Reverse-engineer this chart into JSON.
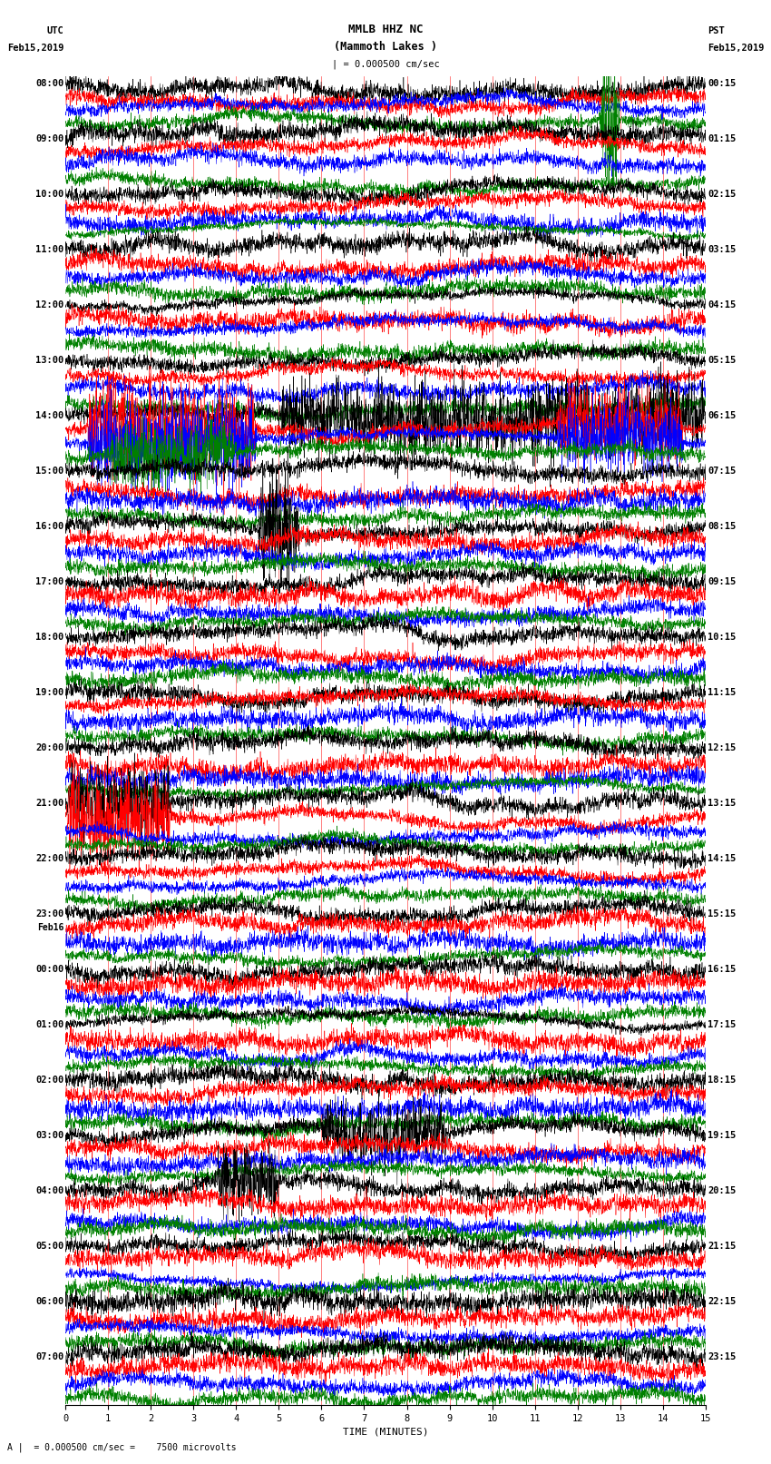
{
  "title_line1": "MMLB HHZ NC",
  "title_line2": "(Mammoth Lakes )",
  "title_line3": "| = 0.000500 cm/sec",
  "left_header1": "UTC",
  "left_header2": "Feb15,2019",
  "right_header1": "PST",
  "right_header2": "Feb15,2019",
  "footer": "A |  = 0.000500 cm/sec =    7500 microvolts",
  "xlabel": "TIME (MINUTES)",
  "colors": [
    "black",
    "red",
    "blue",
    "green"
  ],
  "num_rows": 96,
  "minutes": 15,
  "samples_per_minute": 200,
  "left_times": [
    "08:00",
    "",
    "",
    "",
    "09:00",
    "",
    "",
    "",
    "10:00",
    "",
    "",
    "",
    "11:00",
    "",
    "",
    "",
    "12:00",
    "",
    "",
    "",
    "13:00",
    "",
    "",
    "",
    "14:00",
    "",
    "",
    "",
    "15:00",
    "",
    "",
    "",
    "16:00",
    "",
    "",
    "",
    "17:00",
    "",
    "",
    "",
    "18:00",
    "",
    "",
    "",
    "19:00",
    "",
    "",
    "",
    "20:00",
    "",
    "",
    "",
    "21:00",
    "",
    "",
    "",
    "22:00",
    "",
    "",
    "",
    "23:00",
    "Feb16",
    "",
    "",
    "00:00",
    "",
    "",
    "",
    "01:00",
    "",
    "",
    "",
    "02:00",
    "",
    "",
    "",
    "03:00",
    "",
    "",
    "",
    "04:00",
    "",
    "",
    "",
    "05:00",
    "",
    "",
    "",
    "06:00",
    "",
    "",
    "",
    "07:00",
    "",
    "",
    ""
  ],
  "right_times": [
    "00:15",
    "",
    "",
    "",
    "01:15",
    "",
    "",
    "",
    "02:15",
    "",
    "",
    "",
    "03:15",
    "",
    "",
    "",
    "04:15",
    "",
    "",
    "",
    "05:15",
    "",
    "",
    "",
    "06:15",
    "",
    "",
    "",
    "07:15",
    "",
    "",
    "",
    "08:15",
    "",
    "",
    "",
    "09:15",
    "",
    "",
    "",
    "10:15",
    "",
    "",
    "",
    "11:15",
    "",
    "",
    "",
    "12:15",
    "",
    "",
    "",
    "13:15",
    "",
    "",
    "",
    "14:15",
    "",
    "",
    "",
    "15:15",
    "",
    "",
    "",
    "16:15",
    "",
    "",
    "",
    "17:15",
    "",
    "",
    "",
    "18:15",
    "",
    "",
    "",
    "19:15",
    "",
    "",
    "",
    "20:15",
    "",
    "",
    "",
    "21:15",
    "",
    "",
    "",
    "22:15",
    "",
    "",
    "",
    "23:15",
    "",
    "",
    ""
  ],
  "background_color": "white",
  "fig_width": 8.5,
  "fig_height": 16.13,
  "dpi": 100,
  "title_fontsize": 9,
  "label_fontsize": 7.5,
  "tick_fontsize": 7.5
}
